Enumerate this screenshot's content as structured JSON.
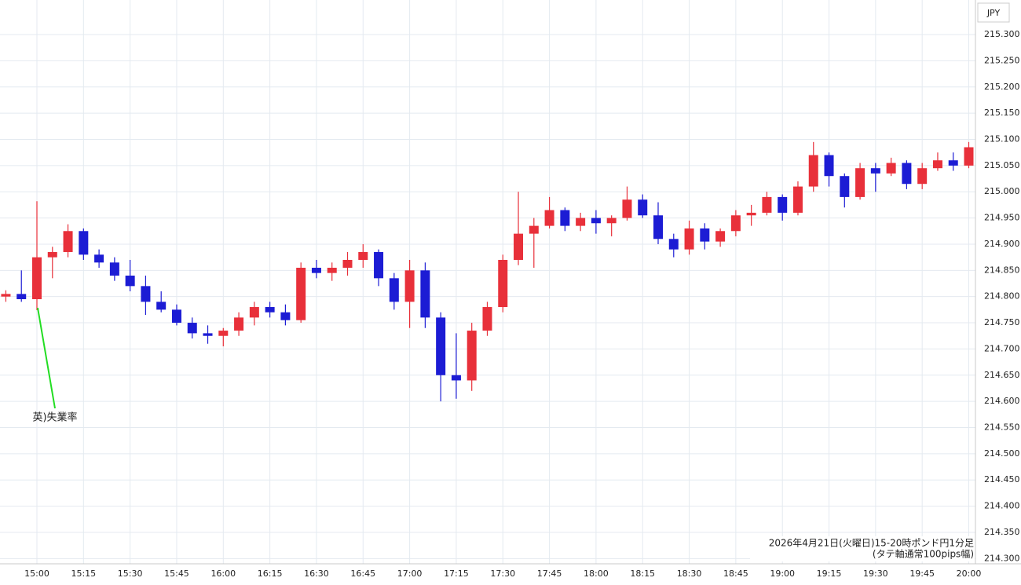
{
  "chart_data": {
    "type": "candlestick",
    "unit_label": "JPY",
    "caption": [
      "2026年4月21日(火曜日)15-20時ポンド円1分足",
      "(タテ軸通常100pips幅)"
    ],
    "annotation": "英)失業率",
    "up_color": "#e8303a",
    "down_color": "#1c1cd4",
    "grid": true,
    "x": [
      "14:50",
      "14:55",
      "15:00",
      "15:05",
      "15:10",
      "15:15",
      "15:20",
      "15:25",
      "15:30",
      "15:35",
      "15:40",
      "15:45",
      "15:50",
      "15:55",
      "16:00",
      "16:05",
      "16:10",
      "16:15",
      "16:20",
      "16:25",
      "16:30",
      "16:35",
      "16:40",
      "16:45",
      "16:50",
      "16:55",
      "17:00",
      "17:05",
      "17:10",
      "17:15",
      "17:20",
      "17:25",
      "17:30",
      "17:35",
      "17:40",
      "17:45",
      "17:50",
      "17:55",
      "18:00",
      "18:05",
      "18:10",
      "18:15",
      "18:20",
      "18:25",
      "18:30",
      "18:35",
      "18:40",
      "18:45",
      "18:50",
      "18:55",
      "19:00",
      "19:05",
      "19:10",
      "19:15",
      "19:20",
      "19:25",
      "19:30",
      "19:35",
      "19:40",
      "19:45",
      "19:50",
      "19:55",
      "20:00"
    ],
    "open": [
      214.8,
      214.805,
      214.795,
      214.875,
      214.885,
      214.925,
      214.88,
      214.865,
      214.84,
      214.82,
      214.79,
      214.775,
      214.75,
      214.73,
      214.725,
      214.735,
      214.76,
      214.78,
      214.77,
      214.755,
      214.855,
      214.845,
      214.855,
      214.87,
      214.885,
      214.835,
      214.79,
      214.85,
      214.76,
      214.65,
      214.64,
      214.735,
      214.78,
      214.87,
      214.92,
      214.935,
      214.965,
      214.935,
      214.95,
      214.94,
      214.95,
      214.985,
      214.955,
      214.91,
      214.89,
      214.93,
      214.905,
      214.925,
      214.955,
      214.96,
      214.99,
      214.96,
      215.01,
      215.07,
      215.03,
      214.99,
      215.045,
      215.035,
      215.055,
      215.015,
      215.045,
      215.06,
      215.05
    ],
    "high": [
      214.812,
      214.85,
      214.982,
      214.895,
      214.938,
      214.93,
      214.89,
      214.875,
      214.87,
      214.84,
      214.81,
      214.785,
      214.76,
      214.745,
      214.74,
      214.77,
      214.79,
      214.79,
      214.785,
      214.865,
      214.87,
      214.865,
      214.885,
      214.9,
      214.89,
      214.845,
      214.87,
      214.865,
      214.77,
      214.73,
      214.75,
      214.79,
      214.88,
      215.0,
      214.95,
      214.99,
      214.97,
      214.96,
      214.965,
      214.955,
      215.01,
      214.995,
      214.98,
      214.92,
      214.945,
      214.94,
      214.93,
      214.965,
      214.975,
      215.0,
      214.995,
      215.02,
      215.095,
      215.075,
      215.035,
      215.055,
      215.055,
      215.065,
      215.06,
      215.055,
      215.075,
      215.075,
      215.095
    ],
    "low": [
      214.79,
      214.79,
      214.774,
      214.835,
      214.875,
      214.87,
      214.855,
      214.83,
      214.81,
      214.765,
      214.77,
      214.745,
      214.72,
      214.71,
      214.705,
      214.725,
      214.745,
      214.76,
      214.745,
      214.75,
      214.835,
      214.83,
      214.84,
      214.855,
      214.82,
      214.775,
      214.74,
      214.74,
      214.6,
      214.605,
      214.62,
      214.725,
      214.77,
      214.86,
      214.855,
      214.93,
      214.925,
      214.925,
      214.92,
      214.915,
      214.945,
      214.95,
      214.9,
      214.875,
      214.88,
      214.89,
      214.895,
      214.915,
      214.935,
      214.955,
      214.945,
      214.955,
      215.0,
      215.01,
      214.97,
      214.985,
      215.0,
      215.03,
      215.005,
      215.005,
      215.04,
      215.04,
      215.045
    ],
    "close": [
      214.805,
      214.795,
      214.875,
      214.885,
      214.925,
      214.88,
      214.865,
      214.84,
      214.82,
      214.79,
      214.775,
      214.75,
      214.73,
      214.725,
      214.735,
      214.76,
      214.78,
      214.77,
      214.755,
      214.855,
      214.845,
      214.855,
      214.87,
      214.885,
      214.835,
      214.79,
      214.85,
      214.76,
      214.65,
      214.64,
      214.735,
      214.78,
      214.87,
      214.92,
      214.935,
      214.965,
      214.935,
      214.95,
      214.94,
      214.95,
      214.985,
      214.955,
      214.91,
      214.89,
      214.93,
      214.905,
      214.925,
      214.955,
      214.96,
      214.99,
      214.96,
      215.01,
      215.07,
      215.03,
      214.99,
      215.045,
      215.035,
      215.055,
      215.015,
      215.045,
      215.06,
      215.05,
      215.085
    ],
    "xticks": [
      "15:00",
      "15:15",
      "15:30",
      "15:45",
      "16:00",
      "16:15",
      "16:30",
      "16:45",
      "17:00",
      "17:15",
      "17:30",
      "17:45",
      "18:00",
      "18:15",
      "18:30",
      "18:45",
      "19:00",
      "19:15",
      "19:30",
      "19:45",
      "20:00"
    ],
    "ylim": [
      214.29,
      215.366
    ],
    "yticks": [
      {
        "value": 214.3,
        "label": "214.300"
      },
      {
        "value": 214.35,
        "label": "214.350"
      },
      {
        "value": 214.4,
        "label": "214.400"
      },
      {
        "value": 214.45,
        "label": "214.450"
      },
      {
        "value": 214.5,
        "label": "214.500"
      },
      {
        "value": 214.55,
        "label": "214.550"
      },
      {
        "value": 214.6,
        "label": "214.600"
      },
      {
        "value": 214.65,
        "label": "214.650"
      },
      {
        "value": 214.7,
        "label": "214.700"
      },
      {
        "value": 214.75,
        "label": "214.750"
      },
      {
        "value": 214.8,
        "label": "214.800"
      },
      {
        "value": 214.85,
        "label": "214.850"
      },
      {
        "value": 214.9,
        "label": "214.900"
      },
      {
        "value": 214.95,
        "label": "214.950"
      },
      {
        "value": 215.0,
        "label": "215.000"
      },
      {
        "value": 215.05,
        "label": "215.050"
      },
      {
        "value": 215.1,
        "label": "215.100"
      },
      {
        "value": 215.15,
        "label": "215.150"
      },
      {
        "value": 215.2,
        "label": "215.200"
      },
      {
        "value": 215.25,
        "label": "215.250"
      },
      {
        "value": 215.3,
        "label": "215.300"
      }
    ]
  }
}
